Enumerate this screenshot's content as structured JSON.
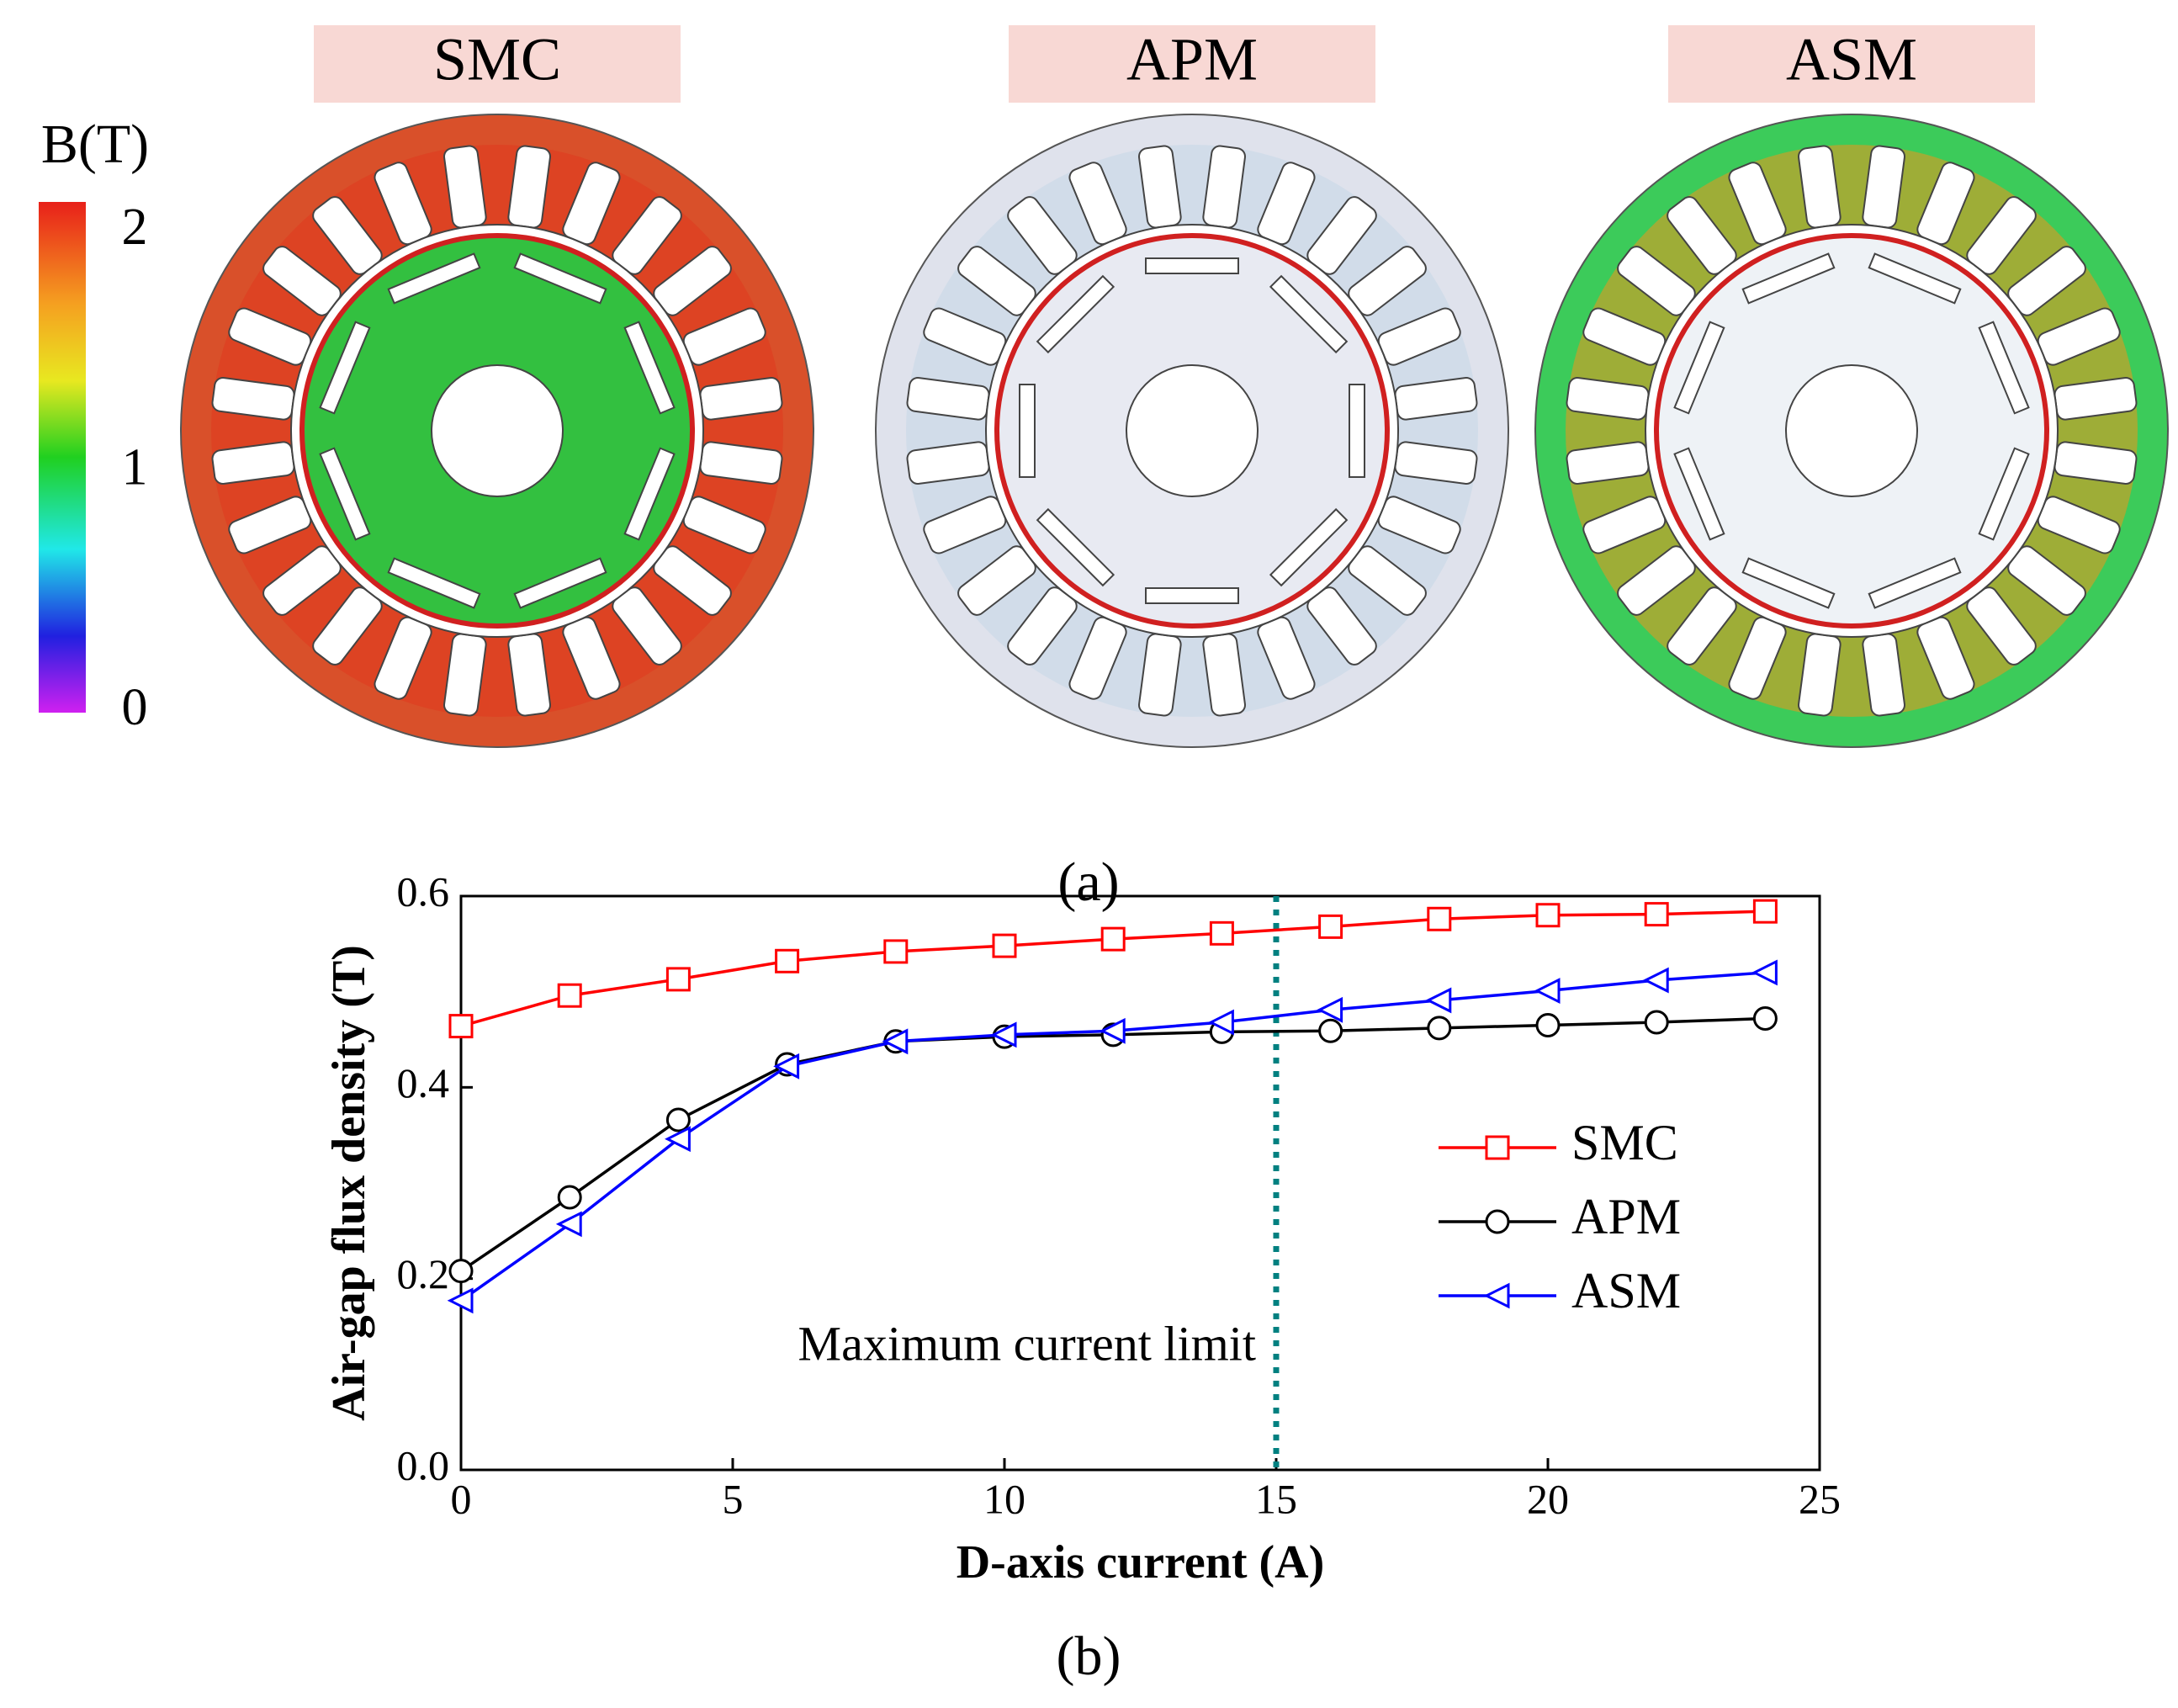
{
  "panel_a": {
    "titles": [
      "SMC",
      "APM",
      "ASM"
    ],
    "colorbar": {
      "title": "B(T)",
      "lim": [
        0,
        2
      ],
      "ticks": [
        0,
        1,
        2
      ]
    },
    "caption": "(a)"
  },
  "chart_data": {
    "type": "line",
    "caption": "(b)",
    "x_label": "D-axis current (A)",
    "y_label": "Air-gap flux density (T)",
    "x": [
      0,
      2,
      4,
      6,
      8,
      10,
      12,
      14,
      16,
      18,
      20,
      22,
      24
    ],
    "series": [
      {
        "name": "SMC",
        "color": "#ff0000",
        "marker": "square",
        "values": [
          0.464,
          0.496,
          0.513,
          0.532,
          0.542,
          0.548,
          0.555,
          0.561,
          0.568,
          0.576,
          0.58,
          0.581,
          0.584
        ]
      },
      {
        "name": "APM",
        "color": "#000000",
        "marker": "circle",
        "values": [
          0.208,
          0.285,
          0.366,
          0.424,
          0.448,
          0.453,
          0.455,
          0.458,
          0.459,
          0.462,
          0.465,
          0.468,
          0.472
        ]
      },
      {
        "name": "ASM",
        "color": "#0000ff",
        "marker": "triangle-left",
        "values": [
          0.177,
          0.257,
          0.346,
          0.422,
          0.448,
          0.455,
          0.459,
          0.468,
          0.481,
          0.491,
          0.501,
          0.512,
          0.52
        ]
      }
    ],
    "xlim": [
      0,
      25
    ],
    "xticks": [
      0,
      5,
      10,
      15,
      20,
      25
    ],
    "ylim": [
      0,
      0.6
    ],
    "yticks": [
      {
        "value": 0,
        "label": "0.0"
      },
      0.2,
      0.4,
      0.6
    ],
    "annotation": {
      "text": "Maximum current limit",
      "x": 15,
      "color": "#008080"
    },
    "legend": "right"
  }
}
